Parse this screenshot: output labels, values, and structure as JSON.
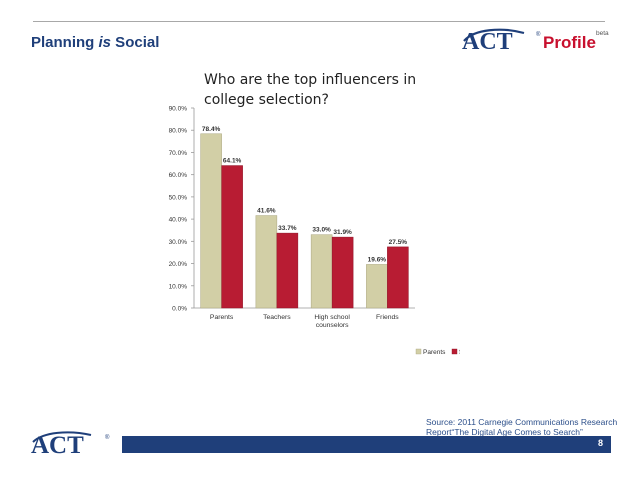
{
  "slide": {
    "title_part1": "Planning ",
    "title_em": "is",
    "title_part2": " Social",
    "page_number": "8",
    "source_line1": "Source: 2011 Carnegie Communications Research",
    "source_line2": "Report“The Digital Age Comes to Search”"
  },
  "logo": {
    "brand": "ACT",
    "product": "Profile",
    "badge": "beta",
    "registered": "®"
  },
  "colors": {
    "navy": "#1f3f7a",
    "brand_red": "#c8102e",
    "parents": "#d2cfa6",
    "students": "#b81c33"
  },
  "chart_data": {
    "type": "bar",
    "title_line1": "Who are the top influencers in",
    "title_line2": "college selection?",
    "categories": [
      "Parents",
      "Teachers",
      "High school counselors",
      "Friends"
    ],
    "series": [
      {
        "name": "Parents",
        "values": [
          78.4,
          41.6,
          33.0,
          19.6
        ],
        "labels": [
          "78.4%",
          "41.6%",
          "33.0%",
          "19.6%"
        ]
      },
      {
        "name": "Students",
        "values": [
          64.1,
          33.7,
          31.9,
          27.5
        ],
        "labels": [
          "64.1%",
          "33.7%",
          "31.9%",
          "27.5%"
        ]
      }
    ],
    "ylim": [
      0,
      90
    ],
    "yticks": [
      0,
      10,
      20,
      30,
      40,
      50,
      60,
      70,
      80,
      90
    ],
    "ytick_labels": [
      "0.0%",
      "10.0%",
      "20.0%",
      "30.0%",
      "40.0%",
      "50.0%",
      "60.0%",
      "70.0%",
      "80.0%",
      "90.0%"
    ],
    "legend_position": "bottom-right",
    "grid": false
  }
}
